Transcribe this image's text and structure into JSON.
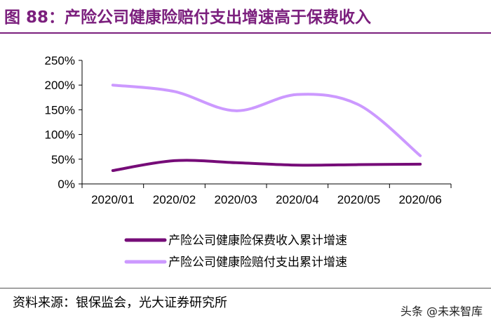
{
  "title": "图 88：产险公司健康险赔付支出增速高于保费收入",
  "source": "资料来源：银保监会，光大证券研究所",
  "watermark": "头条 @未来智库",
  "chart_data": {
    "type": "line",
    "categories": [
      "2020/01",
      "2020/02",
      "2020/03",
      "2020/04",
      "2020/05",
      "2020/06"
    ],
    "ylim": [
      0,
      250
    ],
    "yticks": [
      "0%",
      "50%",
      "100%",
      "150%",
      "200%",
      "250%"
    ],
    "ytick_values": [
      0,
      50,
      100,
      150,
      200,
      250
    ],
    "series": [
      {
        "name": "产险公司健康险保费收入累计增速",
        "color": "#760c78",
        "values": [
          27,
          47,
          43,
          38,
          39,
          40
        ]
      },
      {
        "name": "产险公司健康险赔付支出累计增速",
        "color": "#cc99ff",
        "values": [
          200,
          187,
          148,
          181,
          160,
          57
        ]
      }
    ],
    "xlabel": "",
    "ylabel": ""
  }
}
